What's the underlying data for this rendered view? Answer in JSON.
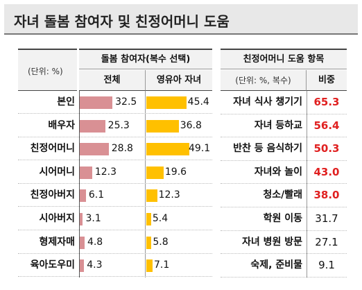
{
  "title": "자녀 돌봄 참여자 및 친정어머니 도움",
  "left_table": {
    "unit": "(단위: %)",
    "group_header": "돌봄 참여자(복수 선택)",
    "col_total": "전체",
    "col_infant": "영유아 자녀",
    "rows": [
      {
        "label": "본인",
        "total": "32.5",
        "infant": "45.4"
      },
      {
        "label": "배우자",
        "total": "25.3",
        "infant": "36.8"
      },
      {
        "label": "친정어머니",
        "total": "28.8",
        "infant": "49.1"
      },
      {
        "label": "시어머니",
        "total": "12.3",
        "infant": "19.6"
      },
      {
        "label": "친정아버지",
        "total": "6.1",
        "infant": "12.3"
      },
      {
        "label": "시아버지",
        "total": "3.1",
        "infant": "5.4"
      },
      {
        "label": "형제자매",
        "total": "4.8",
        "infant": "5.8"
      },
      {
        "label": "육아도우미",
        "total": "4.3",
        "infant": "7.1"
      }
    ],
    "colors": {
      "total": "#d99094",
      "infant": "#ffc000"
    }
  },
  "right_table": {
    "title": "친정어머니 도움 항목",
    "unit": "(단위: %, 복수)",
    "ratio_header": "비중",
    "rows": [
      {
        "item": "자녀 식사 챙기기",
        "ratio": "65.3",
        "highlight": true
      },
      {
        "item": "자녀 등하교",
        "ratio": "56.4",
        "highlight": true
      },
      {
        "item": "반찬 등 음식하기",
        "ratio": "50.3",
        "highlight": true
      },
      {
        "item": "자녀와 놀이",
        "ratio": "43.0",
        "highlight": true
      },
      {
        "item": "청소/빨래",
        "ratio": "38.0",
        "highlight": true
      },
      {
        "item": "학원 이동",
        "ratio": "31.7",
        "highlight": false
      },
      {
        "item": "자녀 병원 방문",
        "ratio": "27.1",
        "highlight": false
      },
      {
        "item": "숙제, 준비물",
        "ratio": "9.1",
        "highlight": false
      }
    ],
    "colors": {
      "highlight": "#e02020",
      "normal": "#111111"
    }
  }
}
